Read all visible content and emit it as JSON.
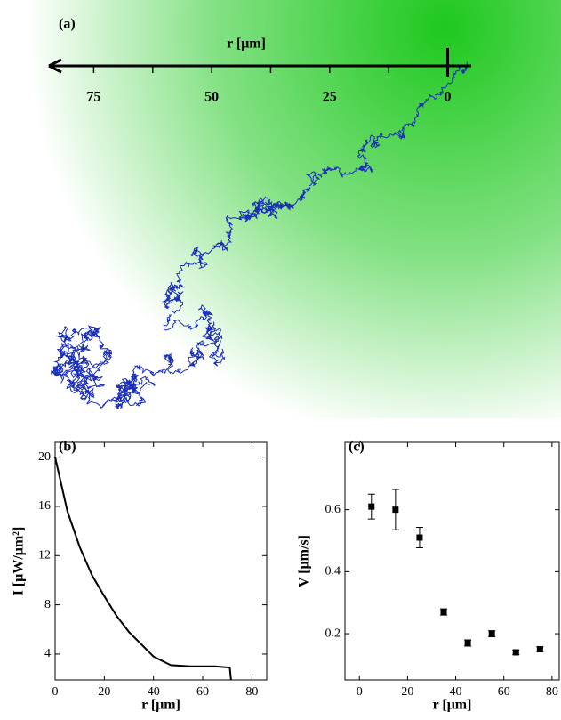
{
  "chart_data": [
    {
      "type": "trajectory",
      "label": "(a)",
      "xlabel": "r [μm]",
      "xlim": [
        84.5,
        -5
      ],
      "xticks": [
        75,
        50,
        25,
        0
      ],
      "color": "#1a2fb8",
      "background": "#1ec81e"
    },
    {
      "type": "line",
      "label": "(b)",
      "xlabel": "r [μm]",
      "ylabel": "I [μW/μm²]",
      "x": [
        0,
        5,
        10,
        15,
        20,
        25,
        30,
        35,
        40,
        47,
        55,
        65,
        71,
        71.5
      ],
      "values": [
        20,
        15.6,
        12.7,
        10.4,
        8.7,
        7.1,
        5.8,
        4.8,
        3.8,
        3.1,
        3.0,
        3.0,
        2.9,
        1.9
      ],
      "xlim": [
        0,
        86
      ],
      "xticks": [
        0,
        20,
        40,
        60,
        80
      ],
      "ylim": [
        1.9,
        21.2
      ],
      "yticks": [
        4,
        8,
        12,
        16,
        20
      ],
      "color": "#000000"
    },
    {
      "type": "errorbar",
      "label": "(c)",
      "xlabel": "r [μm]",
      "ylabel": "V [μm/s]",
      "x": [
        5,
        15,
        25,
        35,
        45,
        55,
        65,
        75
      ],
      "values": [
        0.61,
        0.6,
        0.51,
        0.27,
        0.17,
        0.2,
        0.14,
        0.15
      ],
      "errors": [
        0.04,
        0.065,
        0.033,
        0.01,
        0.01,
        0.01,
        0.007,
        0.008
      ],
      "xlim": [
        -6,
        83
      ],
      "xticks": [
        0,
        20,
        40,
        60,
        80
      ],
      "ylim": [
        0.051,
        0.817
      ],
      "yticks": [
        0.2,
        0.4,
        0.6
      ],
      "color": "#000000"
    }
  ]
}
